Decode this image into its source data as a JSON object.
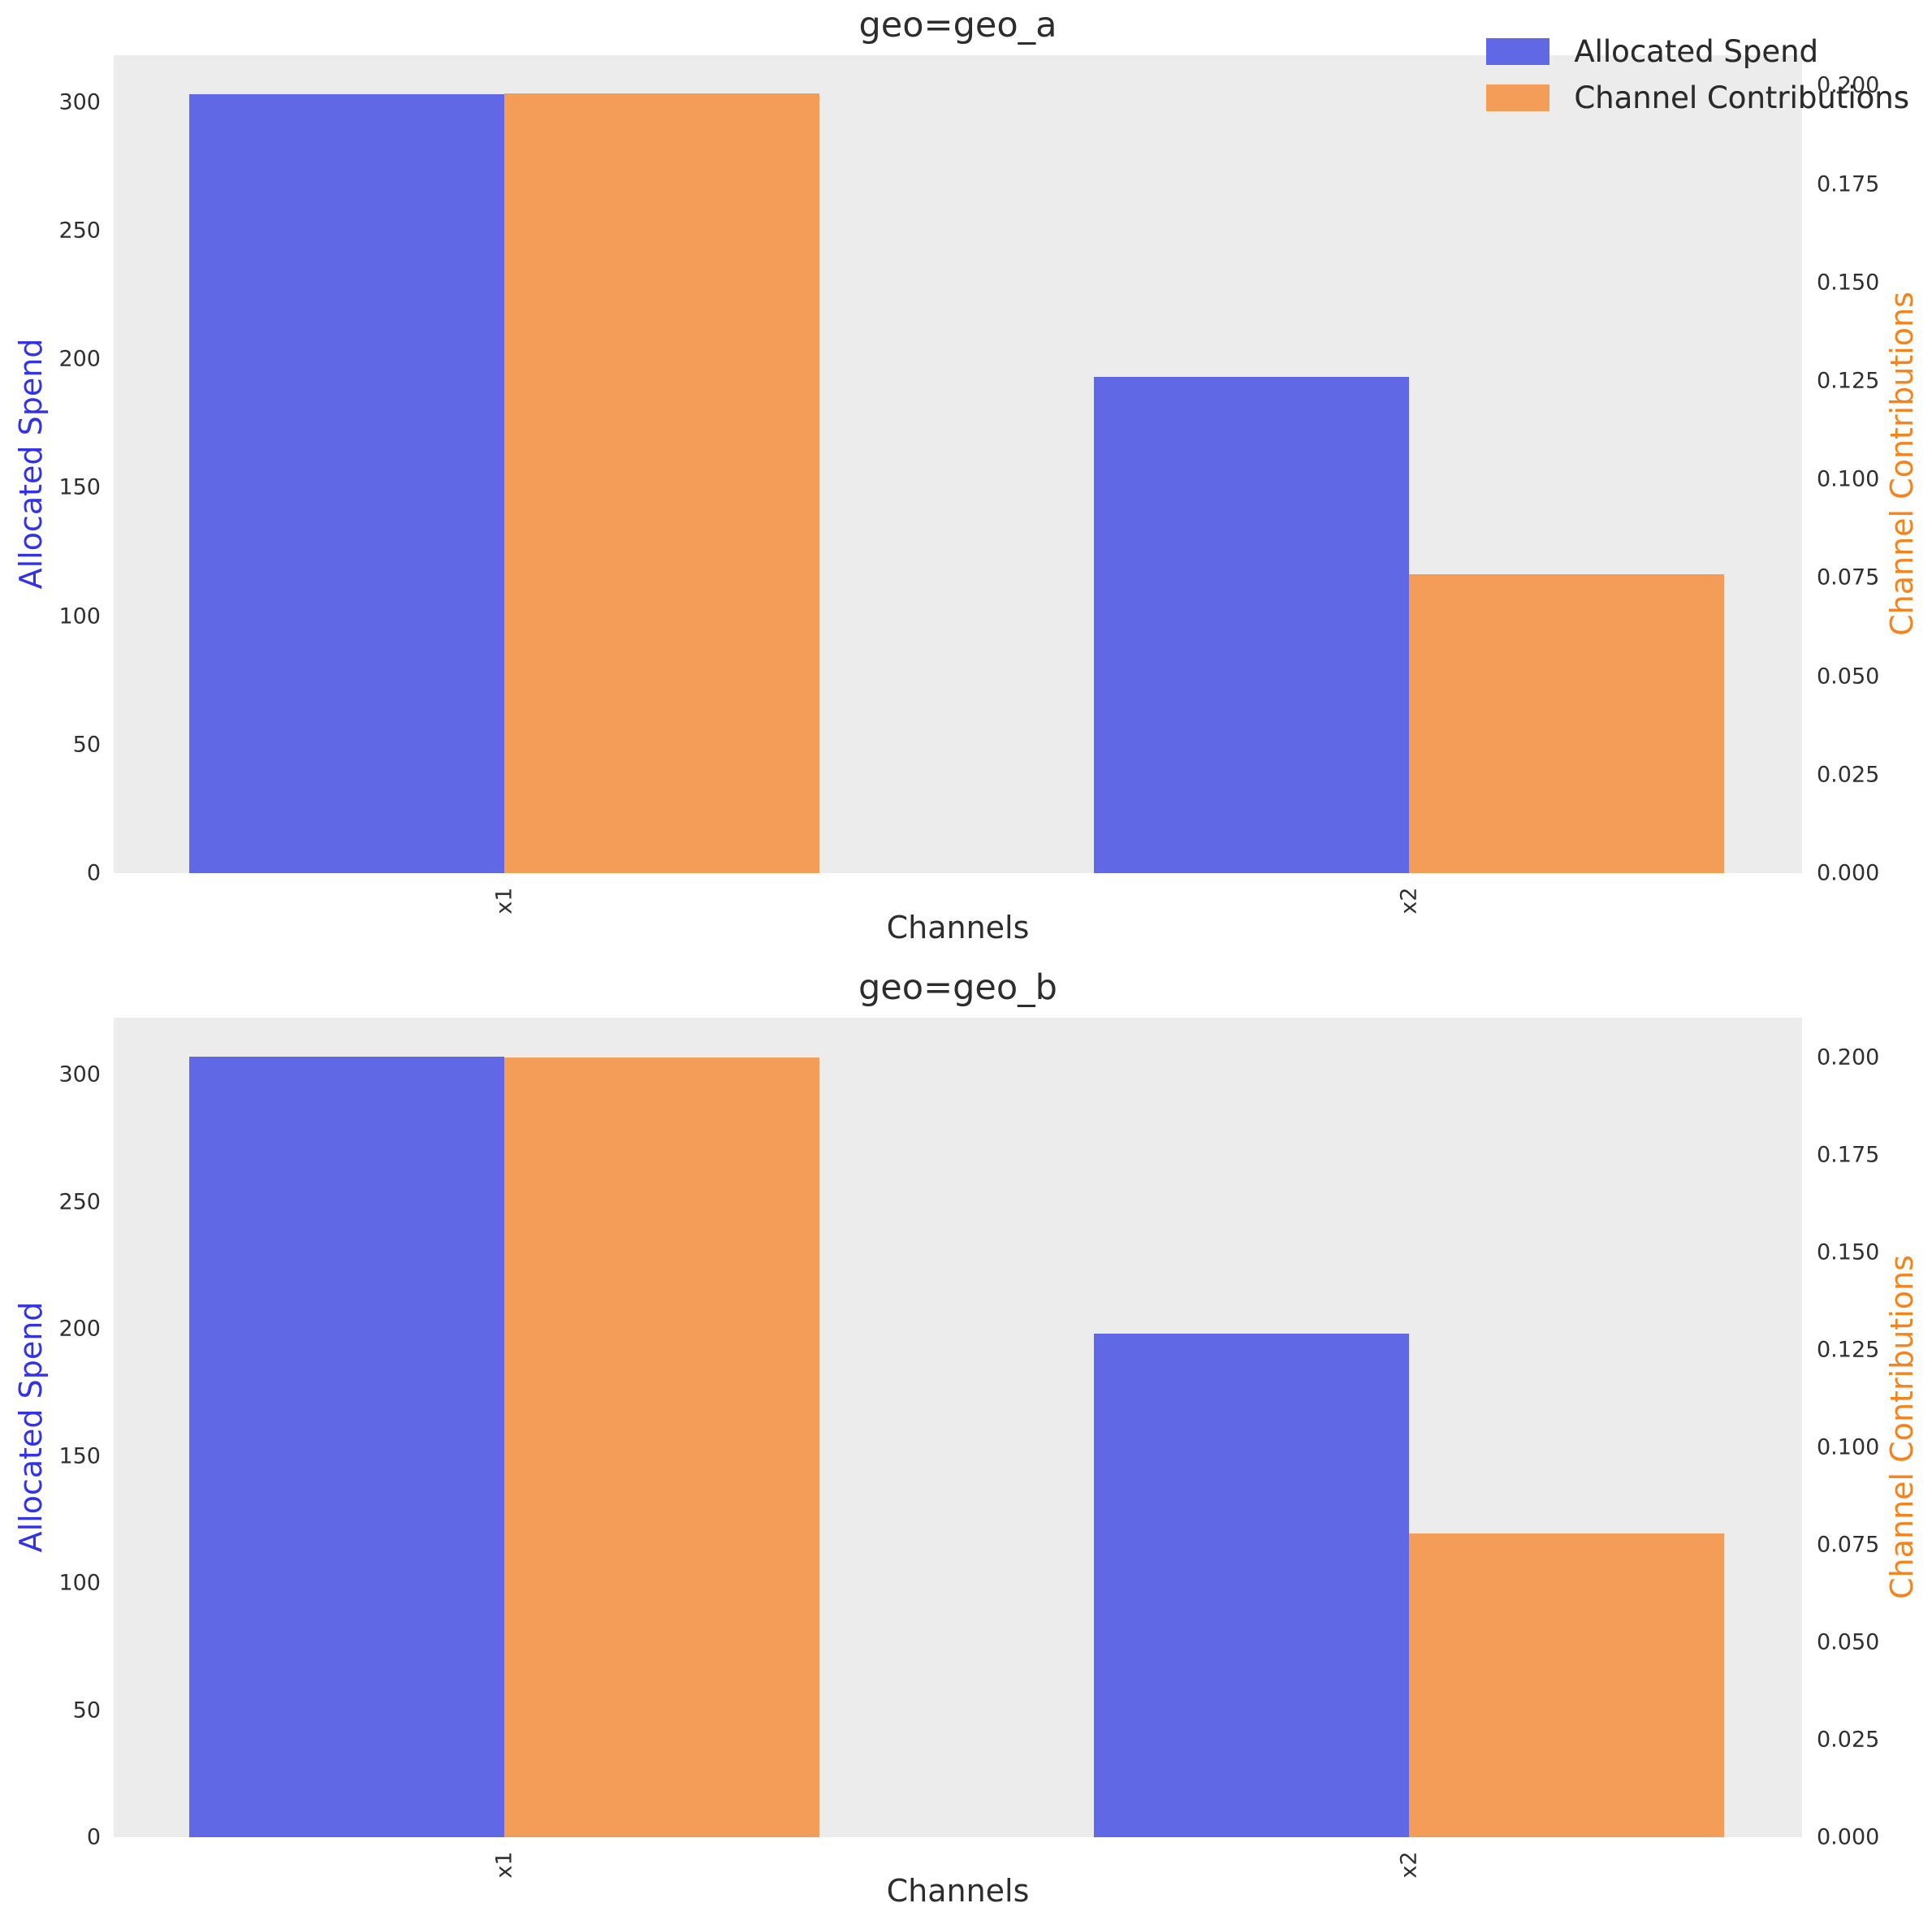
{
  "figure": {
    "background": "#ffffff",
    "plot_background": "#ececec"
  },
  "colors": {
    "spend": "#6168E5",
    "contribution": "#F49D58",
    "spend_label": "#3232E8",
    "contribution_label": "#F5831C",
    "text": "#2d2d2d",
    "tick": "#2f2f2f"
  },
  "legend": {
    "position": "upper right",
    "items": [
      {
        "label": "Allocated Spend"
      },
      {
        "label": "Channel Contributions"
      }
    ]
  },
  "chart_data": [
    {
      "type": "bar",
      "title": "geo=geo_a",
      "xlabel": "Channels",
      "categories": [
        "x1",
        "x2"
      ],
      "x_tick_rotation": 90,
      "grid": false,
      "bar_width": 0.35,
      "legend_position": "upper right",
      "series": [
        {
          "name": "Allocated Spend",
          "axis": "left",
          "color": "#6168E5",
          "values": [
            303,
            193
          ]
        },
        {
          "name": "Channel Contributions",
          "axis": "right",
          "color": "#F49D58",
          "values": [
            0.198,
            0.076
          ]
        }
      ],
      "left_axis": {
        "label": "Allocated Spend",
        "ticks": [
          0,
          50,
          100,
          150,
          200,
          250,
          300
        ],
        "lim": [
          0,
          318.2
        ]
      },
      "right_axis": {
        "label": "Channel Contributions",
        "ticks": [
          0,
          0.025,
          0.05,
          0.075,
          0.1,
          0.125,
          0.15,
          0.175,
          0.2
        ],
        "lim": [
          0,
          0.2077
        ]
      }
    },
    {
      "type": "bar",
      "title": "geo=geo_b",
      "xlabel": "Channels",
      "categories": [
        "x1",
        "x2"
      ],
      "x_tick_rotation": 90,
      "grid": false,
      "bar_width": 0.35,
      "legend_position": "upper right",
      "series": [
        {
          "name": "Allocated Spend",
          "axis": "left",
          "color": "#6168E5",
          "values": [
            307,
            198
          ]
        },
        {
          "name": "Channel Contributions",
          "axis": "right",
          "color": "#F49D58",
          "values": [
            0.2,
            0.078
          ]
        }
      ],
      "left_axis": {
        "label": "Allocated Spend",
        "ticks": [
          0,
          50,
          100,
          150,
          200,
          250,
          300
        ],
        "lim": [
          0,
          322.4
        ]
      },
      "right_axis": {
        "label": "Channel Contributions",
        "ticks": [
          0,
          0.025,
          0.05,
          0.075,
          0.1,
          0.125,
          0.15,
          0.175,
          0.2
        ],
        "lim": [
          0,
          0.2103
        ]
      }
    }
  ]
}
